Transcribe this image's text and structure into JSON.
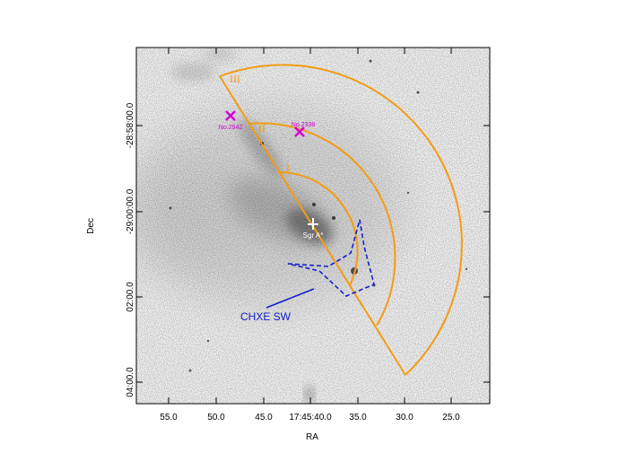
{
  "axes": {
    "x_title": "RA",
    "y_title": "Dec",
    "x_ticks": [
      "55.0",
      "50.0",
      "45.0",
      "17:45:40.0",
      "35.0",
      "30.0",
      "25.0"
    ],
    "y_ticks": [
      "-28:58:00.0",
      "-29:00:00.0",
      "02:00.0",
      "04:00.0"
    ]
  },
  "regions": [
    "I",
    "II",
    "III"
  ],
  "sources": [
    {
      "label": "No.2942",
      "color": "#d400d4"
    },
    {
      "label": "No.2338",
      "color": "#d400d4"
    }
  ],
  "center": {
    "label": "Sgr A*"
  },
  "chxe": {
    "label": "CHXE SW",
    "color": "#1420c8"
  },
  "colors": {
    "arcs": "#f39c12",
    "sources": "#d400d4",
    "chxe": "#1420c8",
    "image_bg": "#f2f2f2"
  }
}
